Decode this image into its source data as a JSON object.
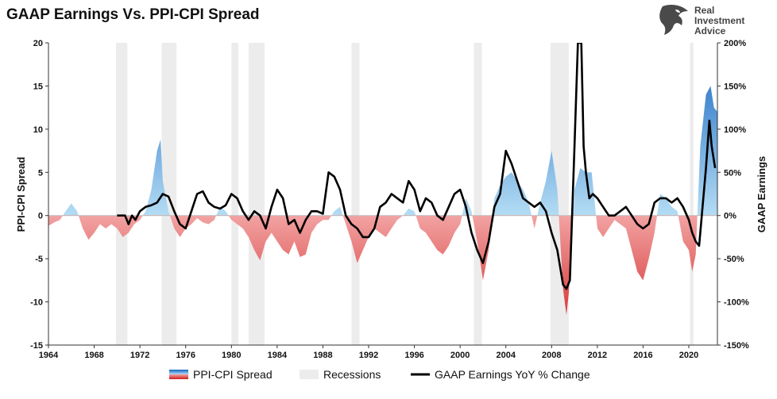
{
  "brand": {
    "logo_lines": [
      "Real",
      "Investment",
      "Advice"
    ]
  },
  "colors": {
    "positive_top": "#1565c0",
    "positive_bottom": "#b3dcf4",
    "negative_top": "#f2a3a3",
    "negative_bottom": "#d01c1c",
    "recession": "#ececec",
    "earnings_line": "#000000"
  },
  "chart_data": {
    "type": "area",
    "title": "GAAP Earnings Vs. PPI-CPI Spread",
    "xlabel": "",
    "ylabel": "PPI-CPI Spread",
    "y2label": "GAAP Earnings",
    "xlim": [
      1964,
      2022.5
    ],
    "ylim": [
      -15,
      20
    ],
    "y2lim": [
      -150,
      200
    ],
    "x_ticks": [
      "1964",
      "1968",
      "1972",
      "1976",
      "1980",
      "1984",
      "1988",
      "1992",
      "1996",
      "2000",
      "2004",
      "2008",
      "2012",
      "2016",
      "2020"
    ],
    "y_ticks": [
      "20",
      "15",
      "10",
      "5",
      "0",
      "-5",
      "-10",
      "-15"
    ],
    "y2_ticks": [
      "200%",
      "150%",
      "100%",
      "50%",
      "0%",
      "-50%",
      "-100%",
      "-150%"
    ],
    "legend": [
      "PPI-CPI Spread",
      "Recessions",
      "GAAP Earnings YoY % Change"
    ],
    "legend_position": "bottom",
    "recessions": [
      [
        1969.9,
        1970.9
      ],
      [
        1973.9,
        1975.2
      ],
      [
        1980.0,
        1980.6
      ],
      [
        1981.5,
        1982.9
      ],
      [
        1990.5,
        1991.2
      ],
      [
        2001.2,
        2001.9
      ],
      [
        2007.9,
        2009.5
      ],
      [
        2020.1,
        2020.4
      ]
    ],
    "series": [
      {
        "name": "PPI-CPI Spread",
        "x": [
          1964.0,
          1964.5,
          1965.0,
          1965.5,
          1966.0,
          1966.5,
          1967.0,
          1967.5,
          1968.0,
          1968.5,
          1969.0,
          1969.5,
          1970.0,
          1970.5,
          1971.0,
          1971.5,
          1972.0,
          1972.5,
          1973.0,
          1973.5,
          1973.8,
          1974.0,
          1974.5,
          1975.0,
          1975.5,
          1976.0,
          1976.5,
          1977.0,
          1977.5,
          1978.0,
          1978.5,
          1979.0,
          1979.5,
          1980.0,
          1980.5,
          1981.0,
          1981.5,
          1982.0,
          1982.5,
          1983.0,
          1983.5,
          1984.0,
          1984.5,
          1985.0,
          1985.5,
          1986.0,
          1986.5,
          1987.0,
          1987.5,
          1988.0,
          1988.5,
          1989.0,
          1989.5,
          1990.0,
          1990.5,
          1991.0,
          1991.5,
          1992.0,
          1992.5,
          1993.0,
          1993.5,
          1994.0,
          1994.5,
          1995.0,
          1995.5,
          1996.0,
          1996.5,
          1997.0,
          1997.5,
          1998.0,
          1998.5,
          1999.0,
          1999.5,
          2000.0,
          2000.5,
          2001.0,
          2001.5,
          2002.0,
          2002.5,
          2003.0,
          2003.5,
          2004.0,
          2004.5,
          2005.0,
          2005.5,
          2006.0,
          2006.5,
          2007.0,
          2007.5,
          2008.0,
          2008.5,
          2009.0,
          2009.3,
          2009.5,
          2010.0,
          2010.5,
          2011.0,
          2011.5,
          2012.0,
          2012.5,
          2013.0,
          2013.5,
          2014.0,
          2014.5,
          2015.0,
          2015.5,
          2016.0,
          2016.5,
          2017.0,
          2017.5,
          2018.0,
          2018.5,
          2019.0,
          2019.5,
          2020.0,
          2020.3,
          2020.6,
          2021.0,
          2021.5,
          2021.9,
          2022.2,
          2022.5
        ],
        "values": [
          -1.2,
          -0.8,
          -0.5,
          0.5,
          1.4,
          0.5,
          -1.5,
          -2.8,
          -2.0,
          -1.0,
          -1.5,
          -1.0,
          -1.5,
          -2.5,
          -2.0,
          -1.0,
          -0.5,
          0.5,
          3.0,
          7.5,
          8.8,
          4.0,
          0.5,
          -1.5,
          -2.5,
          -1.5,
          -1.0,
          -0.3,
          -0.8,
          -1.0,
          -0.5,
          1.0,
          0.5,
          -0.5,
          -1.0,
          -1.5,
          -2.5,
          -4.0,
          -5.2,
          -3.0,
          -2.0,
          -3.0,
          -4.0,
          -4.5,
          -3.0,
          -4.8,
          -4.5,
          -2.0,
          -1.0,
          -0.5,
          -0.5,
          0.5,
          1.0,
          -1.0,
          -3.0,
          -5.5,
          -4.0,
          -2.5,
          -1.5,
          -2.0,
          -2.5,
          -1.5,
          -0.5,
          0.0,
          0.8,
          0.5,
          -1.5,
          -2.0,
          -3.0,
          -4.0,
          -4.5,
          -3.5,
          -2.0,
          -1.0,
          2.0,
          0.5,
          -3.0,
          -7.5,
          -4.0,
          2.0,
          3.5,
          4.5,
          5.0,
          4.0,
          3.0,
          1.5,
          -1.5,
          1.5,
          4.0,
          7.5,
          3.0,
          -8.5,
          -11.5,
          -9.0,
          3.0,
          5.5,
          5.0,
          5.0,
          -1.5,
          -2.5,
          -1.5,
          -0.5,
          -1.0,
          -1.5,
          -4.0,
          -6.5,
          -7.5,
          -5.0,
          -2.0,
          2.5,
          2.0,
          1.0,
          0.5,
          -3.0,
          -4.0,
          -6.5,
          -4.5,
          8.0,
          14.0,
          15.0,
          12.5,
          12.0
        ]
      },
      {
        "name": "GAAP Earnings YoY % Change",
        "x": [
          1970.0,
          1970.7,
          1971.0,
          1971.3,
          1971.6,
          1972.0,
          1972.5,
          1973.0,
          1973.5,
          1974.0,
          1974.5,
          1975.0,
          1975.5,
          1976.0,
          1976.5,
          1977.0,
          1977.5,
          1978.0,
          1978.5,
          1979.0,
          1979.5,
          1980.0,
          1980.5,
          1981.0,
          1981.5,
          1982.0,
          1982.5,
          1983.0,
          1983.5,
          1984.0,
          1984.5,
          1985.0,
          1985.5,
          1986.0,
          1986.5,
          1987.0,
          1987.5,
          1988.0,
          1988.5,
          1989.0,
          1989.5,
          1990.0,
          1990.5,
          1991.0,
          1991.5,
          1992.0,
          1992.5,
          1993.0,
          1993.5,
          1994.0,
          1994.5,
          1995.0,
          1995.5,
          1996.0,
          1996.5,
          1997.0,
          1997.5,
          1998.0,
          1998.5,
          1999.0,
          1999.5,
          2000.0,
          2000.5,
          2001.0,
          2001.5,
          2002.0,
          2002.5,
          2003.0,
          2003.5,
          2004.0,
          2004.5,
          2005.0,
          2005.5,
          2006.0,
          2006.5,
          2007.0,
          2007.5,
          2008.0,
          2008.5,
          2009.0,
          2009.3,
          2009.6,
          2010.0,
          2010.3,
          2010.6,
          2010.8,
          2011.0,
          2011.3,
          2011.6,
          2012.0,
          2012.5,
          2013.0,
          2013.5,
          2014.0,
          2014.5,
          2015.0,
          2015.5,
          2016.0,
          2016.5,
          2017.0,
          2017.5,
          2018.0,
          2018.5,
          2019.0,
          2019.5,
          2020.0,
          2020.3,
          2020.6,
          2020.9,
          2021.2,
          2021.5,
          2021.8,
          2022.0,
          2022.3
        ],
        "values": [
          0,
          0,
          -10,
          0,
          -5,
          5,
          10,
          12,
          15,
          25,
          22,
          5,
          -10,
          -15,
          5,
          25,
          28,
          15,
          10,
          8,
          12,
          25,
          20,
          5,
          -5,
          5,
          0,
          -15,
          10,
          30,
          20,
          -10,
          -5,
          -20,
          -5,
          5,
          5,
          2,
          50,
          45,
          30,
          0,
          -10,
          -15,
          -25,
          -25,
          -15,
          10,
          15,
          25,
          20,
          15,
          40,
          30,
          5,
          20,
          15,
          0,
          -5,
          10,
          25,
          30,
          10,
          -20,
          -40,
          -55,
          -30,
          10,
          25,
          75,
          60,
          40,
          20,
          15,
          10,
          15,
          5,
          -20,
          -40,
          -80,
          -85,
          -75,
          80,
          200,
          200,
          80,
          50,
          20,
          25,
          20,
          10,
          0,
          0,
          5,
          10,
          0,
          -10,
          -15,
          -10,
          15,
          20,
          20,
          15,
          20,
          10,
          -5,
          -20,
          -30,
          -35,
          10,
          55,
          110,
          80,
          55
        ]
      }
    ]
  }
}
